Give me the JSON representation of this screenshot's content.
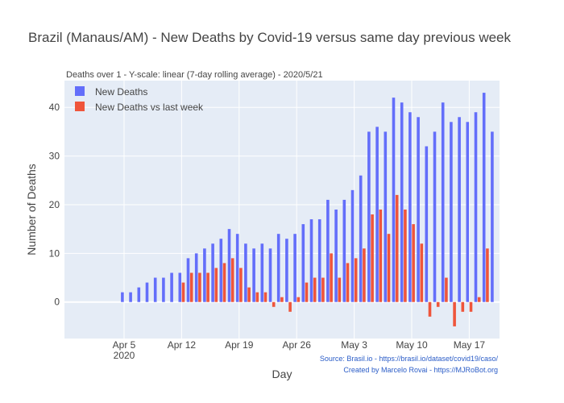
{
  "chart_data": {
    "type": "bar",
    "title": "Brazil (Manaus/AM) - New Deaths by Covid-19 versus same day previous week",
    "subtitle": "Deaths over 1 - Y-scale: linear (7-day rolling average) - 2020/5/21",
    "xlabel": "Day",
    "ylabel": "Number of Deaths",
    "ylim": [
      -7.5,
      45.5
    ],
    "y_ticks": [
      0,
      10,
      20,
      30,
      40
    ],
    "grid": true,
    "legend_position": "top-left",
    "x": [
      "2020-04-05",
      "2020-04-06",
      "2020-04-07",
      "2020-04-08",
      "2020-04-09",
      "2020-04-10",
      "2020-04-11",
      "2020-04-12",
      "2020-04-13",
      "2020-04-14",
      "2020-04-15",
      "2020-04-16",
      "2020-04-17",
      "2020-04-18",
      "2020-04-19",
      "2020-04-20",
      "2020-04-21",
      "2020-04-22",
      "2020-04-23",
      "2020-04-24",
      "2020-04-25",
      "2020-04-26",
      "2020-04-27",
      "2020-04-28",
      "2020-04-29",
      "2020-04-30",
      "2020-05-01",
      "2020-05-02",
      "2020-05-03",
      "2020-05-04",
      "2020-05-05",
      "2020-05-06",
      "2020-05-07",
      "2020-05-08",
      "2020-05-09",
      "2020-05-10",
      "2020-05-11",
      "2020-05-12",
      "2020-05-13",
      "2020-05-14",
      "2020-05-15",
      "2020-05-16",
      "2020-05-17",
      "2020-05-18",
      "2020-05-19",
      "2020-05-20",
      "2020-05-21"
    ],
    "x_ticks": [
      {
        "date": "2020-04-05",
        "label": "Apr 5",
        "sublabel": "2020"
      },
      {
        "date": "2020-04-12",
        "label": "Apr 12",
        "sublabel": ""
      },
      {
        "date": "2020-04-19",
        "label": "Apr 19",
        "sublabel": ""
      },
      {
        "date": "2020-04-26",
        "label": "Apr 26",
        "sublabel": ""
      },
      {
        "date": "2020-05-03",
        "label": "May 3",
        "sublabel": ""
      },
      {
        "date": "2020-05-10",
        "label": "May 10",
        "sublabel": ""
      },
      {
        "date": "2020-05-17",
        "label": "May 17",
        "sublabel": ""
      }
    ],
    "series": [
      {
        "name": "New Deaths",
        "color": "#636efa",
        "values": [
          2,
          2,
          3,
          4,
          5,
          5,
          6,
          6,
          9,
          10,
          11,
          12,
          13,
          15,
          14,
          12,
          11,
          12,
          11,
          14,
          13,
          14,
          16,
          17,
          17,
          21,
          19,
          21,
          23,
          26,
          35,
          36,
          35,
          42,
          41,
          39,
          38,
          32,
          35,
          41,
          37,
          38,
          37,
          39,
          43,
          35,
          null
        ]
      },
      {
        "name": "New Deaths vs last week",
        "color": "#ef553b",
        "values": [
          null,
          null,
          null,
          null,
          null,
          null,
          null,
          4,
          6,
          6,
          6,
          7,
          8,
          9,
          7,
          3,
          2,
          2,
          -1,
          1,
          -2,
          1,
          4,
          5,
          5,
          10,
          5,
          8,
          9,
          11,
          18,
          19,
          14,
          22,
          19,
          16,
          12,
          -3,
          -1,
          5,
          -5,
          -2,
          -2,
          1,
          11,
          null,
          null
        ]
      }
    ],
    "annotations": [
      "Source: Brasil.io - https://brasil.io/dataset/covid19/caso/",
      "Created by Marcelo Rovai - https://MJRoBot.org"
    ]
  }
}
